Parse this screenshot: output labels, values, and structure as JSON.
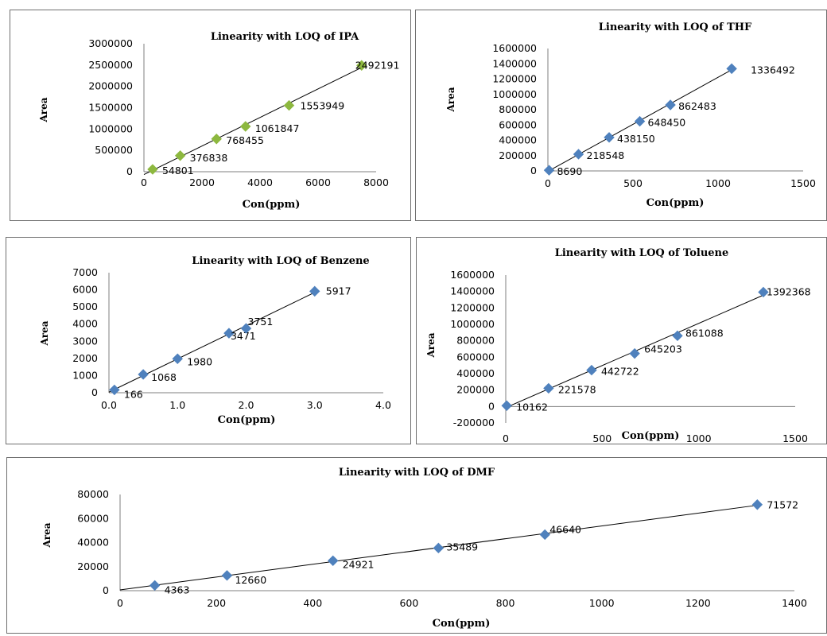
{
  "chart_data": [
    {
      "type": "scatter",
      "title": "Linearity with LOQ of IPA",
      "xlabel": "Con(ppm)",
      "ylabel": "Area",
      "xlim": [
        0,
        8000
      ],
      "ylim": [
        0,
        3000000
      ],
      "xticks": [
        "0",
        "2000",
        "4000",
        "6000",
        "8000"
      ],
      "yticks": [
        "0",
        "500000",
        "1000000",
        "1500000",
        "2000000",
        "2500000",
        "3000000"
      ],
      "marker_color": "#8db83f",
      "trendline": true,
      "series": [
        {
          "x": [
            300,
            1250,
            2500,
            3500,
            5000,
            7500
          ],
          "values": [
            54801,
            376838,
            768455,
            1061847,
            1553949,
            2492191
          ],
          "labels": [
            "54801",
            "376838",
            "768455",
            "1061847",
            "1553949",
            "2492191"
          ]
        }
      ]
    },
    {
      "type": "scatter",
      "title": "Linearity with LOQ of THF",
      "xlabel": "Con(ppm)",
      "ylabel": "Area",
      "xlim": [
        0,
        1500
      ],
      "ylim": [
        0,
        1600000
      ],
      "xticks": [
        "0",
        "500",
        "1000",
        "1500"
      ],
      "yticks": [
        "0",
        "200000",
        "400000",
        "600000",
        "800000",
        "1000000",
        "1200000",
        "1400000",
        "1600000"
      ],
      "marker_color": "#4f81bd",
      "trendline": true,
      "series": [
        {
          "x": [
            7,
            180,
            360,
            540,
            720,
            1080
          ],
          "values": [
            8690,
            218548,
            438150,
            648450,
            862483,
            1336492
          ],
          "labels": [
            "8690",
            "218548",
            "438150",
            "648450",
            "862483",
            "1336492"
          ]
        }
      ]
    },
    {
      "type": "scatter",
      "title": "Linearity with LOQ of Benzene",
      "xlabel": "Con(ppm)",
      "ylabel": "Area",
      "xlim": [
        0,
        4
      ],
      "ylim": [
        0,
        7000
      ],
      "xticks": [
        "0.0",
        "1.0",
        "2.0",
        "3.0",
        "4.0"
      ],
      "yticks": [
        "0",
        "1000",
        "2000",
        "3000",
        "4000",
        "5000",
        "6000",
        "7000"
      ],
      "marker_color": "#4f81bd",
      "trendline": true,
      "series": [
        {
          "x": [
            0.08,
            0.5,
            1.0,
            1.75,
            2.0,
            3.0
          ],
          "values": [
            166,
            1068,
            1980,
            3471,
            3751,
            5917
          ],
          "labels": [
            "166",
            "1068",
            "1980",
            "3471",
            "3751",
            "5917"
          ]
        }
      ]
    },
    {
      "type": "scatter",
      "title": "Linearity with LOQ of Toluene",
      "xlabel": "Con(ppm)",
      "ylabel": "Area",
      "xlim": [
        0,
        1500
      ],
      "ylim": [
        -200000,
        1600000
      ],
      "xticks": [
        "0",
        "500",
        "1000",
        "1500"
      ],
      "yticks": [
        "-200000",
        "0",
        "200000",
        "400000",
        "600000",
        "800000",
        "1000000",
        "1200000",
        "1400000",
        "1600000"
      ],
      "marker_color": "#4f81bd",
      "trendline": true,
      "series": [
        {
          "x": [
            5,
            222,
            445,
            668,
            890,
            1335
          ],
          "values": [
            10162,
            221578,
            442722,
            645203,
            861088,
            1392368
          ],
          "labels": [
            "10162",
            "221578",
            "442722",
            "645203",
            "861088",
            "1392368"
          ]
        }
      ]
    },
    {
      "type": "scatter",
      "title": "Linearity with LOQ of DMF",
      "xlabel": "Con(ppm)",
      "ylabel": "Area",
      "xlim": [
        0,
        1400
      ],
      "ylim": [
        0,
        80000
      ],
      "xticks": [
        "0",
        "200",
        "400",
        "600",
        "800",
        "1000",
        "1200",
        "1400"
      ],
      "yticks": [
        "0",
        "20000",
        "40000",
        "60000",
        "80000"
      ],
      "marker_color": "#4f81bd",
      "trendline": true,
      "series": [
        {
          "x": [
            72,
            222,
            442,
            661,
            882,
            1323
          ],
          "values": [
            4363,
            12660,
            24921,
            35489,
            46640,
            71572
          ],
          "labels": [
            "4363",
            "12660",
            "24921",
            "35489",
            "46640",
            "71572"
          ]
        }
      ]
    }
  ]
}
